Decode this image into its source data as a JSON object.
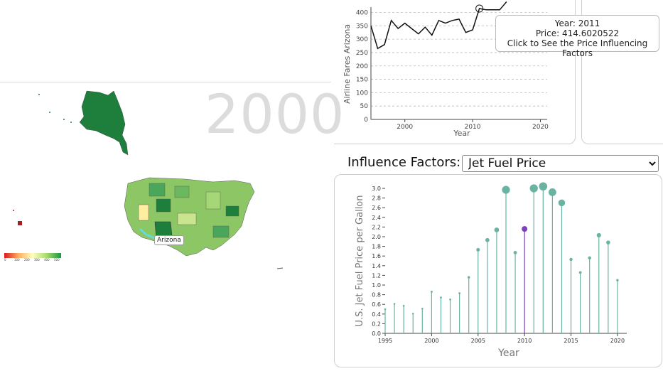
{
  "map": {
    "year": "2000",
    "hover_state_label": "Arizona",
    "legend_ticks": [
      "0",
      "100",
      "200",
      "300",
      "400",
      "500"
    ],
    "colors": {
      "scale_low": "#d7191c",
      "scale_mid": "#ffffbf",
      "scale_high": "#1a9641",
      "highlight": "#66d9d9"
    }
  },
  "top_chart": {
    "ylabel": "Airline Fares Arizona",
    "xlabel": "Year",
    "x_ticks": [
      "2000",
      "2010",
      "2020"
    ],
    "y_ticks": [
      "0",
      "50",
      "100",
      "150",
      "200",
      "250",
      "300",
      "350",
      "400"
    ]
  },
  "tooltip": {
    "line1": "Year: 2011",
    "line2": "Price: 414.6020522",
    "line3": "Click to See the Price Influencing Factors"
  },
  "influence": {
    "label": "Influence Factors:",
    "selected": "Jet Fuel Price"
  },
  "bottom_chart": {
    "ylabel": "U.S. Jet Fuel Price per Gallon",
    "xlabel": "Year",
    "x_ticks": [
      "1995",
      "2000",
      "2005",
      "2010",
      "2015",
      "2020"
    ],
    "y_ticks": [
      "0.0",
      "0.2",
      "0.4",
      "0.6",
      "0.8",
      "1.0",
      "1.2",
      "1.4",
      "1.6",
      "1.8",
      "2.0",
      "2.2",
      "2.4",
      "2.6",
      "2.8",
      "3.0"
    ]
  },
  "chart_data": [
    {
      "type": "line",
      "ylabel": "Airline Fares Arizona",
      "xlabel": "Year",
      "xlim": [
        1995,
        2021
      ],
      "ylim": [
        0,
        420
      ],
      "x": [
        1995,
        1996,
        1997,
        1998,
        1999,
        2000,
        2001,
        2002,
        2003,
        2004,
        2005,
        2006,
        2007,
        2008,
        2009,
        2010,
        2011,
        2012,
        2013,
        2014,
        2015
      ],
      "values": [
        350,
        265,
        280,
        370,
        340,
        360,
        340,
        320,
        345,
        315,
        370,
        360,
        370,
        375,
        325,
        335,
        414.6,
        410,
        410,
        410,
        440
      ],
      "highlight": {
        "x": 2011,
        "y": 414.6020522
      },
      "grid": true
    },
    {
      "type": "scatter",
      "ylabel": "U.S. Jet Fuel Price per Gallon",
      "xlabel": "Year",
      "xlim": [
        1995,
        2021
      ],
      "ylim": [
        0,
        3.0
      ],
      "x": [
        1995,
        1996,
        1997,
        1998,
        1999,
        2000,
        2001,
        2002,
        2003,
        2004,
        2005,
        2006,
        2007,
        2008,
        2009,
        2010,
        2011,
        2012,
        2013,
        2014,
        2015,
        2016,
        2017,
        2018,
        2019,
        2020
      ],
      "values": [
        0.5,
        0.61,
        0.57,
        0.41,
        0.51,
        0.86,
        0.74,
        0.7,
        0.83,
        1.16,
        1.73,
        1.93,
        2.14,
        2.97,
        1.67,
        2.16,
        3.0,
        3.04,
        2.92,
        2.7,
        1.53,
        1.26,
        1.56,
        2.03,
        1.88,
        1.1
      ],
      "highlight_x": 2010,
      "colors": {
        "stem": "#69b3a2",
        "highlight": "#7b3fbf"
      }
    }
  ]
}
